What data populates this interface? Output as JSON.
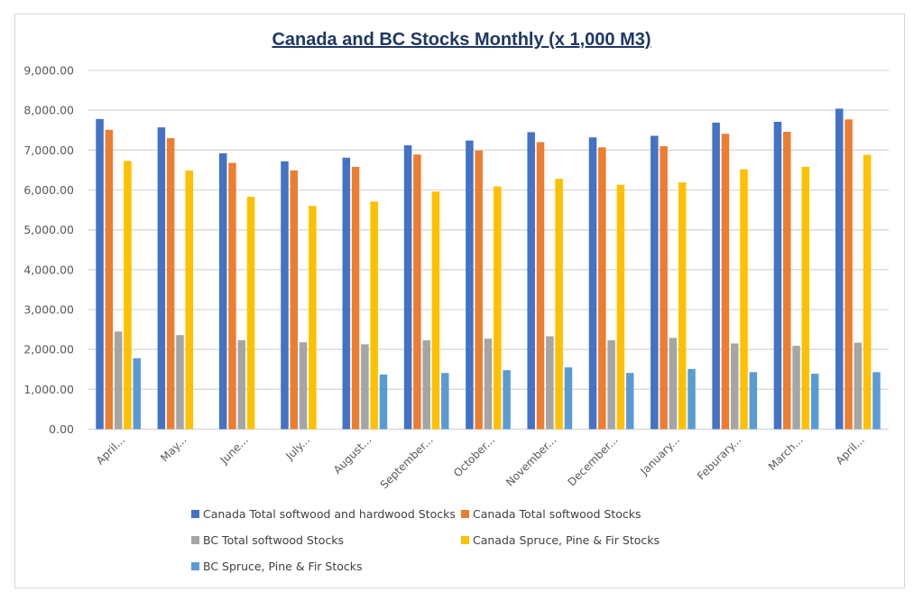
{
  "chart_data": {
    "type": "bar",
    "title": "Canada and BC Stocks  Monthly (x 1,000 M3)",
    "xlabel": "",
    "ylabel": "",
    "ylim": [
      0,
      9000
    ],
    "yticks": [
      "0.00",
      "1,000.00",
      "2,000.00",
      "3,000.00",
      "4,000.00",
      "5,000.00",
      "6,000.00",
      "7,000.00",
      "8,000.00",
      "9,000.00"
    ],
    "ytick_values": [
      0,
      1000,
      2000,
      3000,
      4000,
      5000,
      6000,
      7000,
      8000,
      9000
    ],
    "grid": true,
    "legend_position": "bottom",
    "categories": [
      "April...",
      "May...",
      "June...",
      "July...",
      "August...",
      "September...",
      "October...",
      "November...",
      "December...",
      "January...",
      "Feburary...",
      "March...",
      "April..."
    ],
    "series": [
      {
        "name": "Canada Total softwood and hardwood Stocks",
        "color": "#4472c4",
        "values": [
          7780,
          7570,
          6920,
          6720,
          6810,
          7120,
          7240,
          7450,
          7320,
          7360,
          7690,
          7710,
          8040
        ]
      },
      {
        "name": "Canada Total softwood Stocks",
        "color": "#ed7d31",
        "values": [
          7510,
          7300,
          6680,
          6490,
          6580,
          6890,
          6990,
          7200,
          7070,
          7100,
          7410,
          7460,
          7770
        ]
      },
      {
        "name": "BC Total softwood Stocks",
        "color": "#a5a5a5",
        "values": [
          2450,
          2360,
          2230,
          2180,
          2130,
          2230,
          2270,
          2330,
          2230,
          2290,
          2150,
          2090,
          2170
        ]
      },
      {
        "name": "Canada Spruce, Pine & Fir Stocks",
        "color": "#ffc000",
        "values": [
          6730,
          6490,
          5830,
          5600,
          5710,
          5960,
          6090,
          6280,
          6130,
          6190,
          6520,
          6580,
          6880
        ]
      },
      {
        "name": "BC Spruce, Pine & Fir Stocks",
        "color": "#5b9bd5",
        "values": [
          1780,
          null,
          null,
          null,
          1370,
          1410,
          1480,
          1550,
          1410,
          1510,
          1430,
          1390,
          1430
        ]
      }
    ]
  },
  "colors": {
    "title": "#1f3864",
    "gridline": "#d9d9d9",
    "tick_text": "#595959",
    "legend_text": "#404040"
  }
}
